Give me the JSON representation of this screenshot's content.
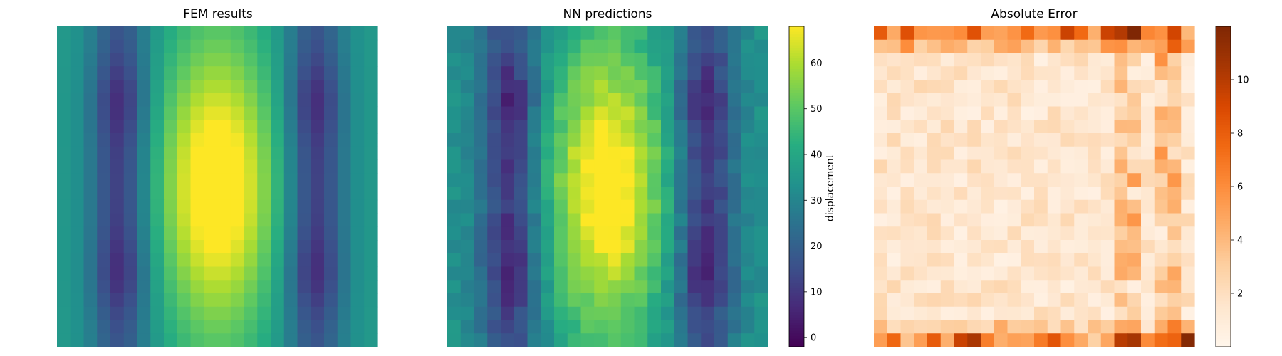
{
  "chart_data": [
    {
      "type": "heatmap",
      "title": "FEM results",
      "rows": 24,
      "cols": 24,
      "colormap": "viridis",
      "vmin": -2,
      "vmax": 68,
      "axes_visible": false,
      "approx_peak": {
        "row": 11.5,
        "col": 11.5,
        "value": 68
      },
      "approx_min_value": 3
    },
    {
      "type": "heatmap",
      "title": "NN predictions",
      "rows": 24,
      "cols": 24,
      "colormap": "viridis",
      "vmin": -2,
      "vmax": 68,
      "axes_visible": false,
      "colorbar": {
        "label": "displacement",
        "ticks": [
          "0",
          "10",
          "20",
          "30",
          "40",
          "50",
          "60"
        ],
        "range": [
          -2,
          68
        ]
      }
    },
    {
      "type": "heatmap",
      "title": "Absolute Error",
      "rows": 24,
      "cols": 24,
      "colormap": "Oranges",
      "vmin": 0,
      "vmax": 12,
      "axes_visible": false,
      "approx_max_value": 12,
      "colorbar": {
        "label": "",
        "ticks": [
          "2",
          "4",
          "6",
          "8",
          "10"
        ],
        "range": [
          0,
          12
        ]
      }
    }
  ]
}
